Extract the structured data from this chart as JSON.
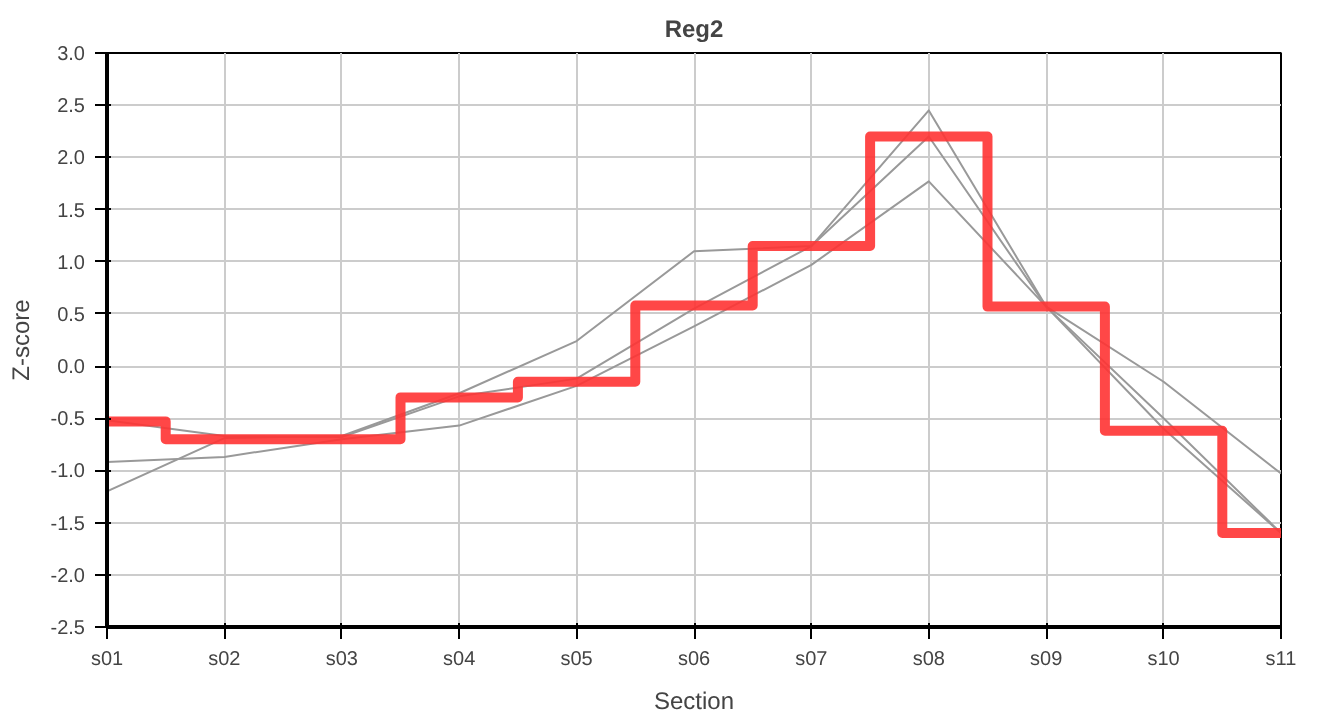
{
  "chart_data": {
    "type": "line",
    "title": "Reg2",
    "xlabel": "Section",
    "ylabel": "Z-score",
    "categories": [
      "s01",
      "s02",
      "s03",
      "s04",
      "s05",
      "s06",
      "s07",
      "s08",
      "s09",
      "s10",
      "s11"
    ],
    "ylim": [
      -2.5,
      3.0
    ],
    "yticks": [
      {
        "value": -2.5,
        "label": "-2.5"
      },
      {
        "value": -2,
        "label": "-2.0"
      },
      {
        "value": -1.5,
        "label": "-1.5"
      },
      {
        "value": -1,
        "label": "-1.0"
      },
      {
        "value": -0.5,
        "label": "-0.5"
      },
      {
        "value": 0,
        "label": "0.0"
      },
      {
        "value": 0.5,
        "label": "0.5"
      },
      {
        "value": 1,
        "label": "1.0"
      },
      {
        "value": 1.5,
        "label": "1.5"
      },
      {
        "value": 2,
        "label": "2.0"
      },
      {
        "value": 2.5,
        "label": "2.5"
      },
      {
        "value": 3,
        "label": "3.0"
      }
    ],
    "grid": true,
    "series": [
      {
        "color": "#999999",
        "values": [
          -1.2,
          -0.69,
          -0.67,
          -0.26,
          0.24,
          1.1,
          1.15,
          2.45,
          0.57,
          -0.6,
          -1.6
        ]
      },
      {
        "color": "#999999",
        "values": [
          -0.92,
          -0.87,
          -0.7,
          -0.57,
          -0.19,
          0.38,
          0.97,
          1.77,
          0.57,
          -0.15,
          -1.03
        ]
      },
      {
        "color": "#999999",
        "values": [
          -0.52,
          -0.67,
          -0.68,
          -0.29,
          -0.12,
          0.55,
          1.15,
          2.2,
          0.57,
          -0.5,
          -1.6
        ]
      },
      {
        "type": "step",
        "color": "#ff3333",
        "values": [
          -0.53,
          -0.7,
          -0.7,
          -0.3,
          -0.15,
          0.58,
          1.15,
          2.2,
          0.57,
          -0.62,
          -1.6
        ]
      }
    ]
  }
}
